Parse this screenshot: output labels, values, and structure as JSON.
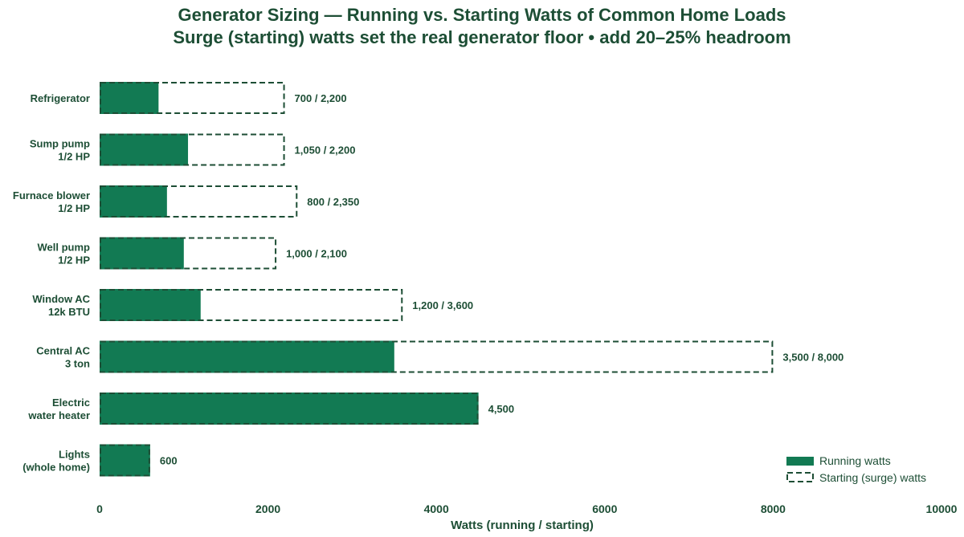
{
  "chart_data": {
    "type": "bar",
    "orientation": "horizontal",
    "title": "Generator Sizing — Running vs. Starting Watts of Common Home Loads",
    "subtitle": "Surge (starting) watts set the real generator floor  •  add 20–25% headroom",
    "xlabel": "Watts (running / starting)",
    "ylabel": "",
    "xlim": [
      0,
      10000
    ],
    "xticks": [
      0,
      2000,
      4000,
      6000,
      8000,
      10000
    ],
    "grid": false,
    "legend_position": "bottom-right",
    "categories": [
      [
        "Refrigerator"
      ],
      [
        "Sump pump",
        "1/2 HP"
      ],
      [
        "Furnace blower",
        "1/2 HP"
      ],
      [
        "Well pump",
        "1/2 HP"
      ],
      [
        "Window AC",
        "12k BTU"
      ],
      [
        "Central AC",
        "3 ton"
      ],
      [
        "Electric",
        "water heater"
      ],
      [
        "Lights",
        "(whole home)"
      ]
    ],
    "series": [
      {
        "name": "Running watts",
        "style": "filled",
        "values": [
          700,
          1050,
          800,
          1000,
          1200,
          3500,
          4500,
          600
        ]
      },
      {
        "name": "Starting (surge) watts",
        "style": "dashed-outline",
        "values": [
          2200,
          2200,
          2350,
          2100,
          3600,
          8000,
          4500,
          600
        ]
      }
    ],
    "data_labels": [
      "700 / 2,200",
      "1,050 / 2,200",
      "800 / 2,350",
      "1,000 / 2,100",
      "1,200 / 3,600",
      "3,500 / 8,000",
      "4,500",
      "600"
    ],
    "colors": {
      "running": "#127a53",
      "starting_outline": "#1d4e35",
      "text": "#1d4e35"
    }
  }
}
